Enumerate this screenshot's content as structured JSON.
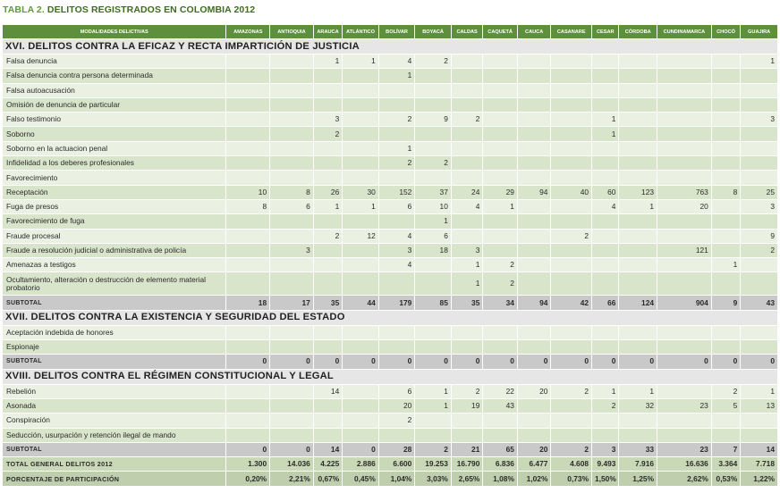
{
  "title": {
    "prefix": "TABLA 2.",
    "text": "DELITOS REGISTRADOS EN COLOMBIA 2012"
  },
  "columns": [
    "MODALIDADES DELICTIVAS",
    "AMAZONAS",
    "ANTIOQUIA",
    "ARAUCA",
    "ATLÁNTICO",
    "BOLÍVAR",
    "BOYACÁ",
    "CALDAS",
    "CAQUETÁ",
    "CAUCA",
    "CASANARE",
    "CESAR",
    "CÓRDOBA",
    "CUNDINAMARCA",
    "CHOCÓ",
    "GUAJIRA"
  ],
  "rows": [
    {
      "kind": "section",
      "label": "XVI. DELITOS CONTRA LA EFICAZ Y RECTA IMPARTICIÓN DE JUSTICIA"
    },
    {
      "kind": "data",
      "label": "Falsa denuncia",
      "values": [
        "",
        "",
        "1",
        "1",
        "4",
        "2",
        "",
        "",
        "",
        "",
        "",
        "",
        "",
        "",
        "1"
      ]
    },
    {
      "kind": "data",
      "label": "Falsa denuncia contra persona determinada",
      "values": [
        "",
        "",
        "",
        "",
        "1",
        "",
        "",
        "",
        "",
        "",
        "",
        "",
        "",
        "",
        ""
      ]
    },
    {
      "kind": "data",
      "label": "Falsa autoacusación",
      "values": [
        "",
        "",
        "",
        "",
        "",
        "",
        "",
        "",
        "",
        "",
        "",
        "",
        "",
        "",
        ""
      ]
    },
    {
      "kind": "data",
      "label": "Omisión de denuncia de particular",
      "values": [
        "",
        "",
        "",
        "",
        "",
        "",
        "",
        "",
        "",
        "",
        "",
        "",
        "",
        "",
        ""
      ]
    },
    {
      "kind": "data",
      "label": "Falso testimonio",
      "values": [
        "",
        "",
        "3",
        "",
        "2",
        "9",
        "2",
        "",
        "",
        "",
        "1",
        "",
        "",
        "",
        "3"
      ]
    },
    {
      "kind": "data",
      "label": "Soborno",
      "values": [
        "",
        "",
        "2",
        "",
        "",
        "",
        "",
        "",
        "",
        "",
        "1",
        "",
        "",
        "",
        ""
      ]
    },
    {
      "kind": "data",
      "label": "Soborno en la actuacion penal",
      "values": [
        "",
        "",
        "",
        "",
        "1",
        "",
        "",
        "",
        "",
        "",
        "",
        "",
        "",
        "",
        ""
      ]
    },
    {
      "kind": "data",
      "label": "Infidelidad a los deberes profesionales",
      "values": [
        "",
        "",
        "",
        "",
        "2",
        "2",
        "",
        "",
        "",
        "",
        "",
        "",
        "",
        "",
        ""
      ]
    },
    {
      "kind": "data",
      "label": "Favorecimiento",
      "values": [
        "",
        "",
        "",
        "",
        "",
        "",
        "",
        "",
        "",
        "",
        "",
        "",
        "",
        "",
        ""
      ]
    },
    {
      "kind": "data",
      "label": "Receptación",
      "values": [
        "10",
        "8",
        "26",
        "30",
        "152",
        "37",
        "24",
        "29",
        "94",
        "40",
        "60",
        "123",
        "763",
        "8",
        "25"
      ]
    },
    {
      "kind": "data",
      "label": "Fuga de presos",
      "values": [
        "8",
        "6",
        "1",
        "1",
        "6",
        "10",
        "4",
        "1",
        "",
        "",
        "4",
        "1",
        "20",
        "",
        "3"
      ]
    },
    {
      "kind": "data",
      "label": "Favorecimiento de fuga",
      "values": [
        "",
        "",
        "",
        "",
        "",
        "1",
        "",
        "",
        "",
        "",
        "",
        "",
        "",
        "",
        ""
      ]
    },
    {
      "kind": "data",
      "label": "Fraude procesal",
      "values": [
        "",
        "",
        "2",
        "12",
        "4",
        "6",
        "",
        "",
        "",
        "2",
        "",
        "",
        "",
        "",
        "9"
      ]
    },
    {
      "kind": "data",
      "label": "Fraude a resolución judicial o administrativa de policía",
      "values": [
        "",
        "3",
        "",
        "",
        "3",
        "18",
        "3",
        "",
        "",
        "",
        "",
        "",
        "121",
        "",
        "2"
      ]
    },
    {
      "kind": "data",
      "label": "Amenazas a testigos",
      "values": [
        "",
        "",
        "",
        "",
        "4",
        "",
        "1",
        "2",
        "",
        "",
        "",
        "",
        "",
        "1",
        ""
      ]
    },
    {
      "kind": "data",
      "tall": true,
      "label": "Ocultamiento, alteración o destrucción de elemento material probatorio",
      "values": [
        "",
        "",
        "",
        "",
        "",
        "",
        "1",
        "2",
        "",
        "",
        "",
        "",
        "",
        "",
        ""
      ]
    },
    {
      "kind": "subtotal",
      "label": "SUBTOTAL",
      "values": [
        "18",
        "17",
        "35",
        "44",
        "179",
        "85",
        "35",
        "34",
        "94",
        "42",
        "66",
        "124",
        "904",
        "9",
        "43"
      ]
    },
    {
      "kind": "section",
      "label": "XVII. DELITOS CONTRA LA EXISTENCIA Y SEGURIDAD DEL ESTADO"
    },
    {
      "kind": "data",
      "label": "Aceptación indebida de honores",
      "values": [
        "",
        "",
        "",
        "",
        "",
        "",
        "",
        "",
        "",
        "",
        "",
        "",
        "",
        "",
        ""
      ]
    },
    {
      "kind": "data",
      "label": "Espionaje",
      "values": [
        "",
        "",
        "",
        "",
        "",
        "",
        "",
        "",
        "",
        "",
        "",
        "",
        "",
        "",
        ""
      ]
    },
    {
      "kind": "subtotal",
      "label": "SUBTOTAL",
      "values": [
        "0",
        "0",
        "0",
        "0",
        "0",
        "0",
        "0",
        "0",
        "0",
        "0",
        "0",
        "0",
        "0",
        "0",
        "0"
      ]
    },
    {
      "kind": "section",
      "label": "XVIII. DELITOS CONTRA EL RÉGIMEN CONSTITUCIONAL Y LEGAL"
    },
    {
      "kind": "data",
      "label": "Rebelión",
      "values": [
        "",
        "",
        "14",
        "",
        "6",
        "1",
        "2",
        "22",
        "20",
        "2",
        "1",
        "1",
        "",
        "2",
        "1"
      ]
    },
    {
      "kind": "data",
      "label": "Asonada",
      "values": [
        "",
        "",
        "",
        "",
        "20",
        "1",
        "19",
        "43",
        "",
        "",
        "2",
        "32",
        "23",
        "5",
        "13"
      ]
    },
    {
      "kind": "data",
      "label": "Conspiración",
      "values": [
        "",
        "",
        "",
        "",
        "2",
        "",
        "",
        "",
        "",
        "",
        "",
        "",
        "",
        "",
        ""
      ]
    },
    {
      "kind": "data",
      "label": "Seducción, usurpación y retención ilegal de mando",
      "values": [
        "",
        "",
        "",
        "",
        "",
        "",
        "",
        "",
        "",
        "",
        "",
        "",
        "",
        "",
        ""
      ]
    },
    {
      "kind": "subtotal",
      "label": "SUBTOTAL",
      "values": [
        "0",
        "0",
        "14",
        "0",
        "28",
        "2",
        "21",
        "65",
        "20",
        "2",
        "3",
        "33",
        "23",
        "7",
        "14"
      ]
    },
    {
      "kind": "total",
      "label": "TOTAL GENERAL DELITOS 2012",
      "values": [
        "1.300",
        "14.036",
        "4.225",
        "2.886",
        "6.600",
        "19.253",
        "16.790",
        "6.836",
        "6.477",
        "4.608",
        "9.493",
        "7.916",
        "16.636",
        "3.364",
        "7.718"
      ]
    },
    {
      "kind": "pct",
      "label": "PORCENTAJE DE PARTICIPACIÓN",
      "values": [
        "0,20%",
        "2,21%",
        "0,67%",
        "0,45%",
        "1,04%",
        "3,03%",
        "2,65%",
        "1,08%",
        "1,02%",
        "0,73%",
        "1,50%",
        "1,25%",
        "2,62%",
        "0,53%",
        "1,22%"
      ]
    }
  ]
}
